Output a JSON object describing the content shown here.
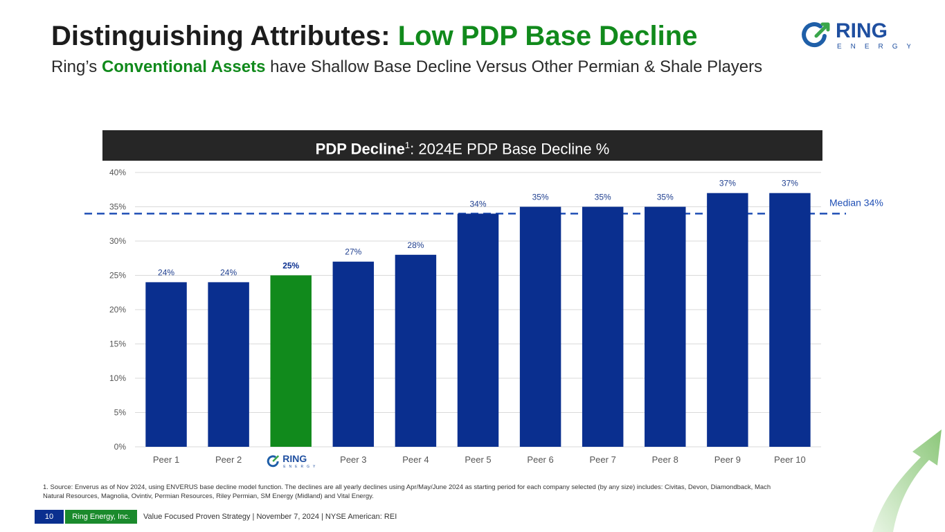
{
  "header": {
    "title_main": "Distinguishing Attributes: ",
    "title_accent": "Low PDP Base Decline",
    "subtitle_pre": "Ring’s ",
    "subtitle_accent": "Conventional Assets",
    "subtitle_post": " have Shallow Base Decline Versus Other Permian & Shale Players"
  },
  "logo": {
    "brand": "RING",
    "sub": "ENERGY"
  },
  "chart_header": {
    "bold": "PDP Decline",
    "sup": "1",
    "rest": ": 2024E PDP Base Decline %"
  },
  "colors": {
    "bar": "#0a2f8f",
    "highlight": "#118a1c",
    "median": "#1f4fb5",
    "grid": "#d9d9d9",
    "axis_text": "#555555"
  },
  "chart_data": {
    "type": "bar",
    "title": "PDP Decline1: 2024E PDP Base Decline %",
    "categories": [
      "Peer 1",
      "Peer 2",
      "Ring Energy",
      "Peer 3",
      "Peer 4",
      "Peer 5",
      "Peer 6",
      "Peer 7",
      "Peer 8",
      "Peer 9",
      "Peer 10"
    ],
    "values": [
      24,
      24,
      25,
      27,
      28,
      34,
      35,
      35,
      35,
      37,
      37
    ],
    "value_labels": [
      "24%",
      "24%",
      "25%",
      "27%",
      "28%",
      "34%",
      "35%",
      "35%",
      "35%",
      "37%",
      "37%"
    ],
    "highlight_index": 2,
    "ylim": [
      0,
      40
    ],
    "yticks": [
      0,
      5,
      10,
      15,
      20,
      25,
      30,
      35,
      40
    ],
    "ytick_labels": [
      "0%",
      "5%",
      "10%",
      "15%",
      "20%",
      "25%",
      "30%",
      "35%",
      "40%"
    ],
    "median": 34,
    "median_label": "Median 34%",
    "grid": true,
    "xlabel": "",
    "ylabel": ""
  },
  "footnote": "1. Source: Enverus as of Nov 2024, using ENVERUS base decline model function. The declines are all yearly declines using Apr/May/June 2024 as starting period for each company selected (by any size) includes: Civitas, Devon, Diamondback, Mach Natural Resources, Magnolia, Ovintiv, Permian Resources, Riley Permian, SM Energy (Midland) and Vital Energy.",
  "footer": {
    "page_number": "10",
    "company": "Ring Energy, Inc.",
    "text": "Value Focused Proven Strategy  |  November 7, 2024  |  NYSE American: REI"
  }
}
